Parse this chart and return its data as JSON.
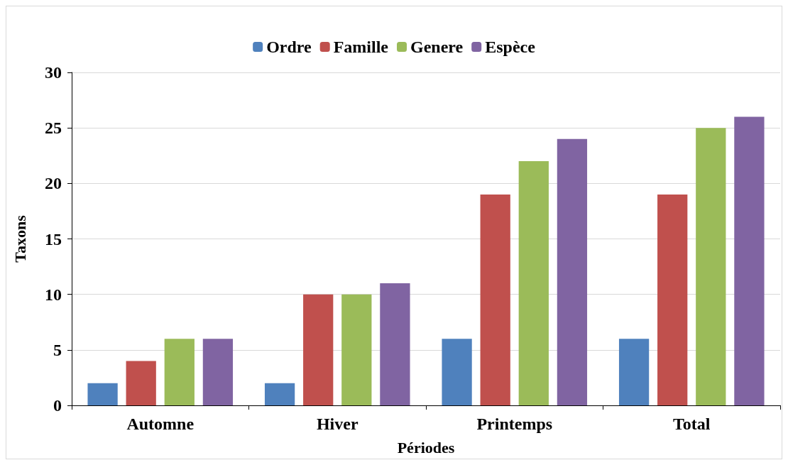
{
  "chart_data": {
    "type": "bar",
    "xlabel": "Périodes",
    "ylabel": "Taxons",
    "categories": [
      "Automne",
      "Hiver",
      "Printemps",
      "Total"
    ],
    "series": [
      {
        "name": "Ordre",
        "color": "#4f81bd",
        "values": [
          2,
          2,
          6,
          6
        ]
      },
      {
        "name": "Famille",
        "color": "#c0504d",
        "values": [
          4,
          10,
          19,
          19
        ]
      },
      {
        "name": "Genere",
        "color": "#9bbb59",
        "values": [
          6,
          10,
          22,
          25
        ]
      },
      {
        "name": "Espèce",
        "color": "#8064a2",
        "values": [
          6,
          11,
          24,
          26
        ]
      }
    ],
    "ylim": [
      0,
      30
    ],
    "yticks": [
      0,
      5,
      10,
      15,
      20,
      25,
      30
    ],
    "grid": "y",
    "legend": "top"
  }
}
